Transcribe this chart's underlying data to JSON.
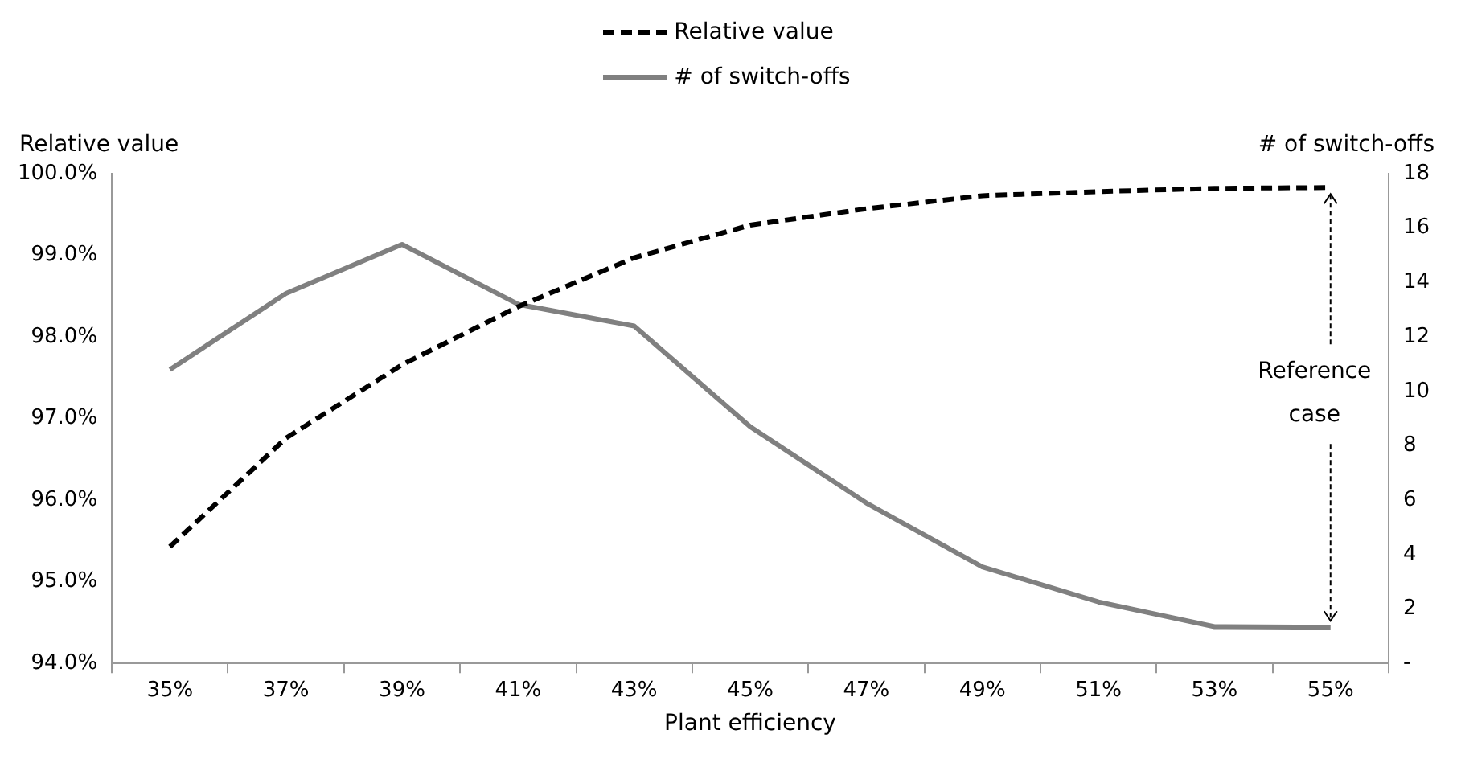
{
  "chart_data": {
    "type": "line",
    "xlabel": "Plant efficiency",
    "ylabel": "Relative value",
    "y2label": "# of switch-offs",
    "categories": [
      "35%",
      "37%",
      "39%",
      "41%",
      "43%",
      "45%",
      "47%",
      "49%",
      "51%",
      "53%",
      "55%"
    ],
    "series": [
      {
        "name": "Relative value",
        "color": "#000000",
        "line_style": "dashed",
        "values": [
          95.43,
          96.76,
          97.66,
          98.37,
          98.97,
          99.37,
          99.57,
          99.73,
          99.78,
          99.82,
          99.83
        ]
      },
      {
        "name": "# of switch-offs",
        "color": "#808080",
        "line_style": "solid",
        "axis": "y2",
        "values": [
          10.8,
          13.6,
          15.4,
          13.2,
          12.4,
          8.7,
          5.9,
          3.55,
          2.26,
          1.35,
          1.33
        ]
      }
    ],
    "ylim": [
      94,
      100
    ],
    "yticks": [
      {
        "value": 94,
        "label": "94.0%"
      },
      {
        "value": 95,
        "label": "95.0%"
      },
      {
        "value": 96,
        "label": "96.0%"
      },
      {
        "value": 97,
        "label": "97.0%"
      },
      {
        "value": 98,
        "label": "98.0%"
      },
      {
        "value": 99,
        "label": "99.0%"
      },
      {
        "value": 100,
        "label": "100.0%"
      }
    ],
    "y2lim": [
      0,
      18
    ],
    "y2ticks": [
      {
        "value": 0,
        "label": "-"
      },
      2,
      4,
      6,
      8,
      10,
      12,
      14,
      16,
      18
    ],
    "annotations": [
      {
        "text": "Reference case",
        "x": "55%",
        "y": 99.83
      }
    ],
    "legend": "top",
    "grid": false,
    "marker": "none"
  }
}
